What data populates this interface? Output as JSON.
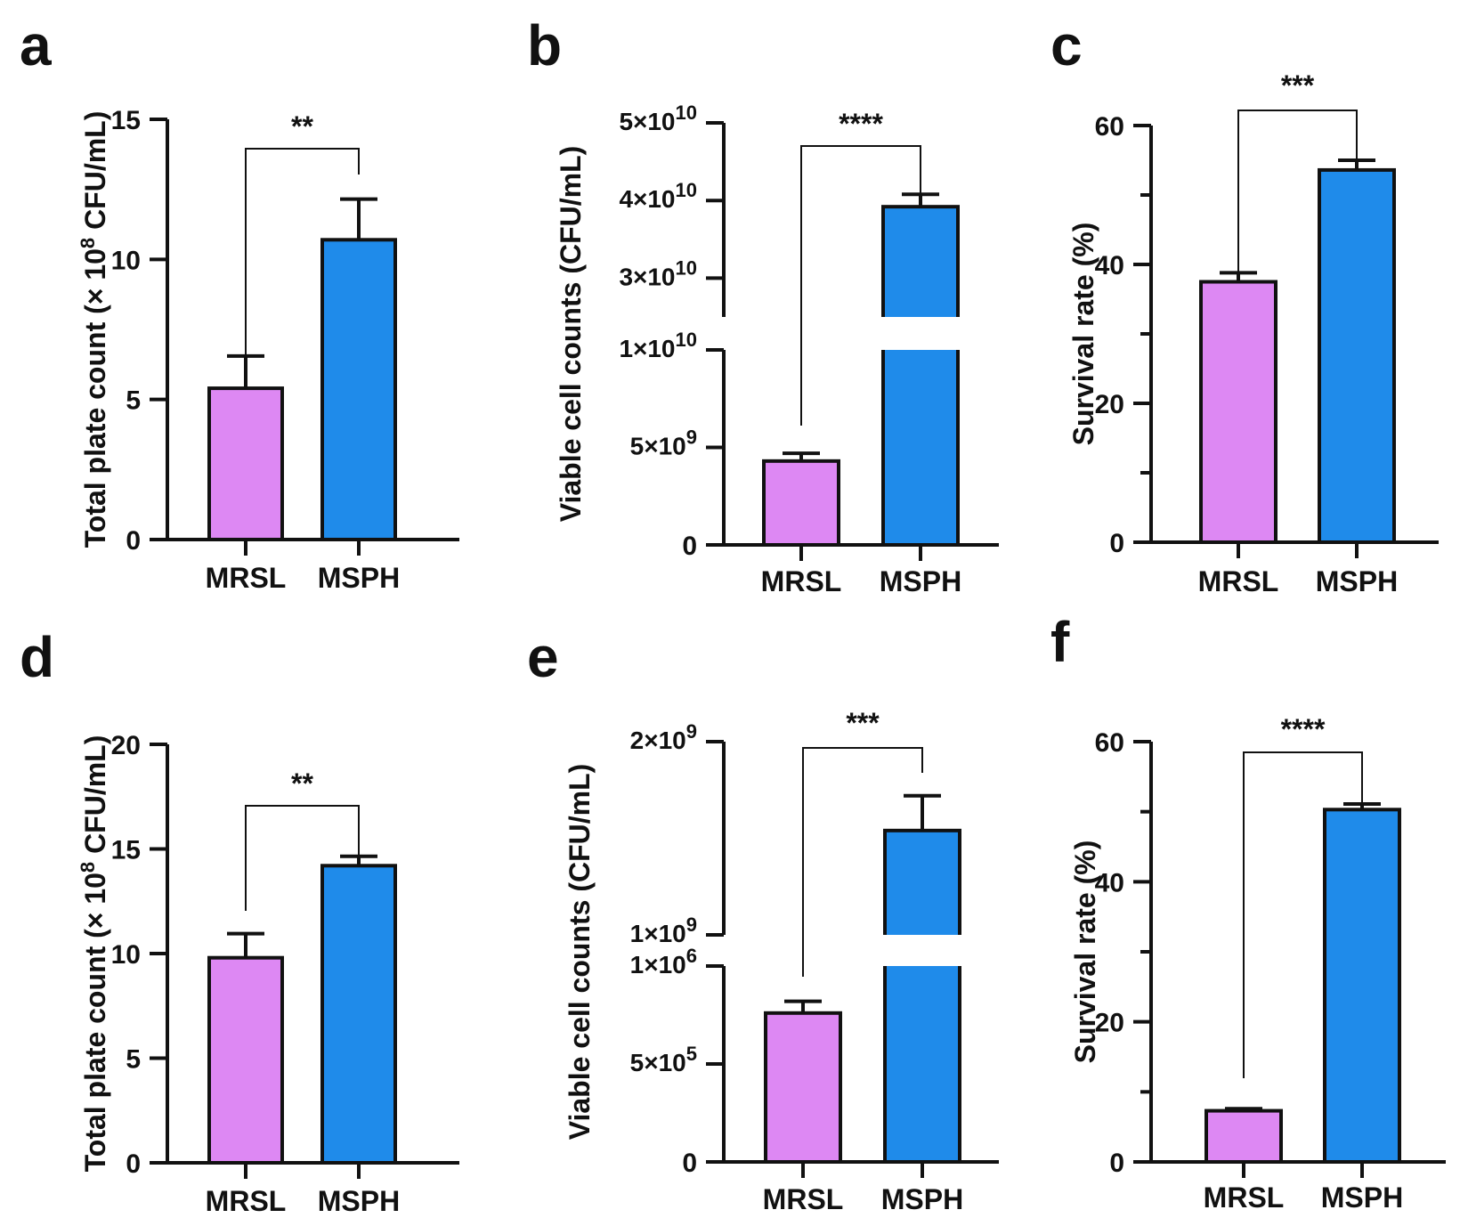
{
  "chart_data": [
    {
      "panel": "a",
      "type": "bar",
      "categories": [
        "MRSL",
        "MSPH"
      ],
      "values": [
        5.4,
        10.7
      ],
      "errors": [
        1.15,
        1.45
      ],
      "colors": [
        "#dd88f3",
        "#1f8bea"
      ],
      "ylabel_parts": [
        "Total plate count (× 10",
        "8",
        " CFU/mL)"
      ],
      "ylim": [
        0,
        15
      ],
      "ticks": [
        {
          "v": 0,
          "label": "0"
        },
        {
          "v": 5,
          "label": "5"
        },
        {
          "v": 10,
          "label": "10"
        },
        {
          "v": 15,
          "label": "15"
        }
      ],
      "significance": "**"
    },
    {
      "panel": "b",
      "type": "bar",
      "broken_axis": true,
      "categories": [
        "MRSL",
        "MSPH"
      ],
      "values": [
        4300000000,
        39200000000
      ],
      "errors": [
        400000000,
        1600000000
      ],
      "colors": [
        "#dd88f3",
        "#1f8bea"
      ],
      "ylabel": "Viable cell counts (CFU/mL)",
      "segments": [
        {
          "range": [
            0,
            10000000000
          ],
          "ticks": [
            {
              "v": 0,
              "label": "0"
            },
            {
              "v": 5000000000,
              "base": "5×10",
              "exp": "9"
            },
            {
              "v": 10000000000,
              "base": "1×10",
              "exp": "10"
            }
          ]
        },
        {
          "range": [
            25000000000,
            50000000000
          ],
          "ticks": [
            {
              "v": 30000000000,
              "base": "3×10",
              "exp": "10"
            },
            {
              "v": 40000000000,
              "base": "4×10",
              "exp": "10"
            },
            {
              "v": 50000000000,
              "base": "5×10",
              "exp": "10"
            }
          ]
        }
      ],
      "significance": "****"
    },
    {
      "panel": "c",
      "type": "bar",
      "categories": [
        "MRSL",
        "MSPH"
      ],
      "values": [
        37.5,
        53.6
      ],
      "errors": [
        1.3,
        1.4
      ],
      "colors": [
        "#dd88f3",
        "#1f8bea"
      ],
      "ylabel": "Survival rate (%)",
      "ylim": [
        0,
        60
      ],
      "ticks": [
        {
          "v": 0,
          "label": "0"
        },
        {
          "v": 20,
          "label": "20"
        },
        {
          "v": 40,
          "label": "40"
        },
        {
          "v": 60,
          "label": "60"
        }
      ],
      "minor_ticks": [
        10,
        30,
        50
      ],
      "significance": "***"
    },
    {
      "panel": "d",
      "type": "bar",
      "categories": [
        "MRSL",
        "MSPH"
      ],
      "values": [
        9.8,
        14.2
      ],
      "errors": [
        1.15,
        0.45
      ],
      "colors": [
        "#dd88f3",
        "#1f8bea"
      ],
      "ylabel_parts": [
        "Total plate count (× 10",
        "8",
        " CFU/mL)"
      ],
      "ylim": [
        0,
        20
      ],
      "ticks": [
        {
          "v": 0,
          "label": "0"
        },
        {
          "v": 5,
          "label": "5"
        },
        {
          "v": 10,
          "label": "10"
        },
        {
          "v": 15,
          "label": "15"
        },
        {
          "v": 20,
          "label": "20"
        }
      ],
      "significance": "**"
    },
    {
      "panel": "e",
      "type": "bar",
      "broken_axis": true,
      "categories": [
        "MRSL",
        "MSPH"
      ],
      "values": [
        760000,
        1540000000
      ],
      "errors": [
        60000,
        180000000
      ],
      "colors": [
        "#dd88f3",
        "#1f8bea"
      ],
      "ylabel": "Viable cell counts (CFU/mL)",
      "segments": [
        {
          "range": [
            0,
            1000000
          ],
          "ticks": [
            {
              "v": 0,
              "label": "0"
            },
            {
              "v": 500000,
              "base": "5×10",
              "exp": "5"
            },
            {
              "v": 1000000,
              "base": "1×10",
              "exp": "6"
            }
          ]
        },
        {
          "range": [
            1000000000,
            2000000000
          ],
          "ticks": [
            {
              "v": 1000000000,
              "base": "1×10",
              "exp": "9"
            },
            {
              "v": 2000000000,
              "base": "2×10",
              "exp": "9"
            }
          ]
        }
      ],
      "significance": "***"
    },
    {
      "panel": "f",
      "type": "bar",
      "categories": [
        "MRSL",
        "MSPH"
      ],
      "values": [
        7.3,
        50.3
      ],
      "errors": [
        0.3,
        0.8
      ],
      "colors": [
        "#dd88f3",
        "#1f8bea"
      ],
      "ylabel": "Survival rate (%)",
      "ylim": [
        0,
        60
      ],
      "ticks": [
        {
          "v": 0,
          "label": "0"
        },
        {
          "v": 20,
          "label": "20"
        },
        {
          "v": 40,
          "label": "40"
        },
        {
          "v": 60,
          "label": "60"
        }
      ],
      "minor_ticks": [
        10,
        30,
        50
      ],
      "significance": "****"
    }
  ]
}
